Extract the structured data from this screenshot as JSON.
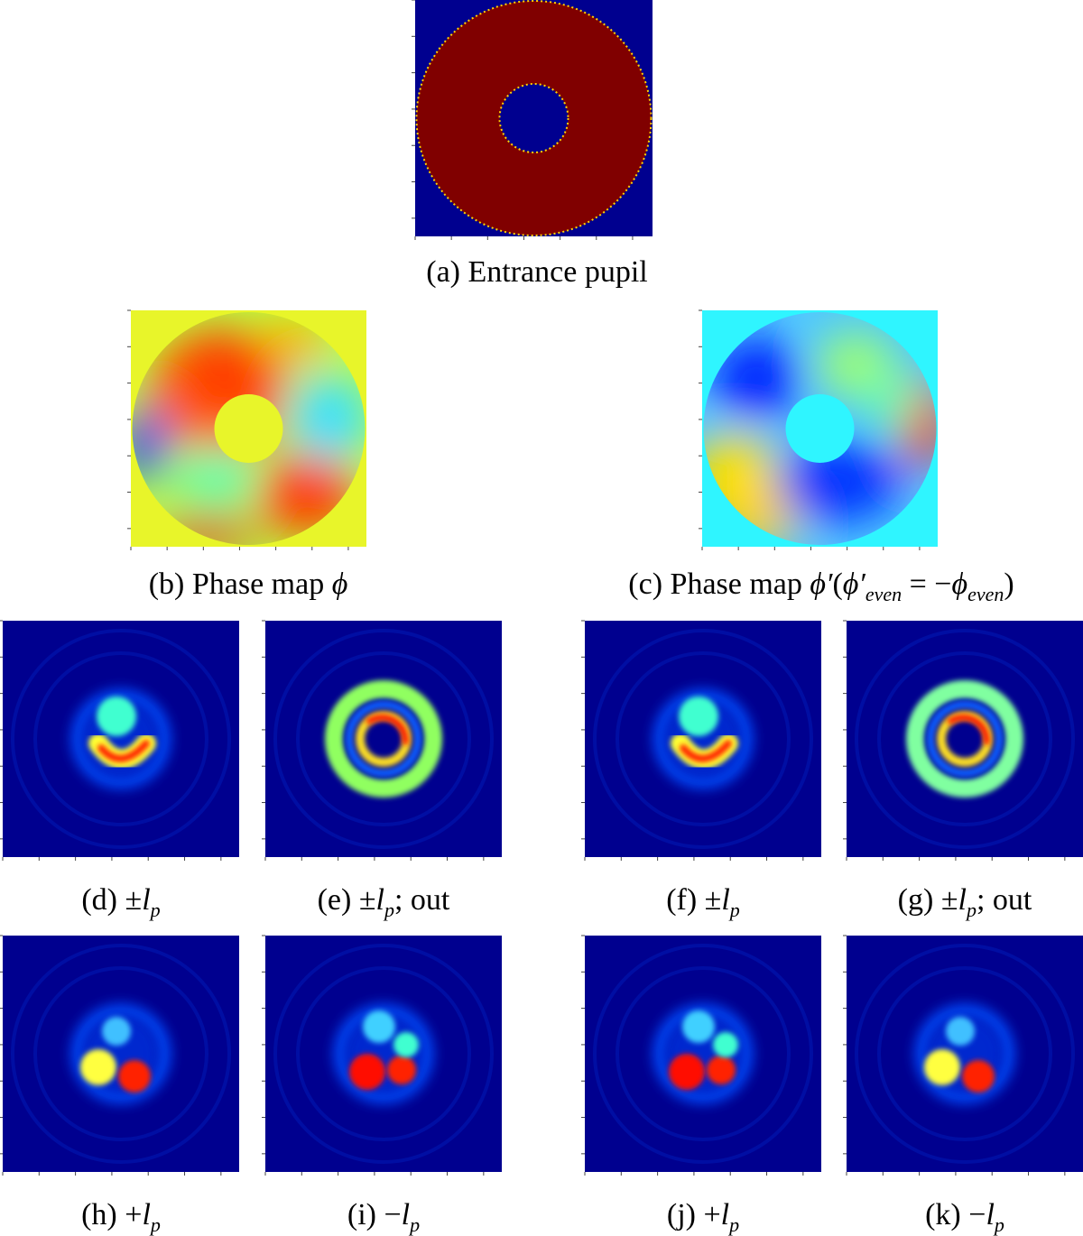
{
  "figure": {
    "colors": {
      "jet_dark_blue": "#00008f",
      "jet_dark_red": "#800000",
      "jet_cyan": "#2ff5ff",
      "jet_yellow": "#e8f52a"
    },
    "panels": [
      {
        "id": "a",
        "label": "(a)",
        "text": "Entrance pupil",
        "kind": "pupil"
      },
      {
        "id": "b",
        "label": "(b)",
        "text": "Phase map ",
        "symbol": "ϕ",
        "kind": "phase"
      },
      {
        "id": "c",
        "label": "(c)",
        "text": "Phase map ",
        "symbol": "ϕ′",
        "kind": "phase",
        "paren_open": "(",
        "lhs": "ϕ′",
        "lhs_sub": "even",
        "eq": " = −",
        "rhs": "ϕ",
        "rhs_sub": "even",
        "paren_close": ")"
      },
      {
        "id": "d",
        "label": "(d)",
        "prefix": "±",
        "symbol": "l",
        "sub": "p",
        "suffix": "",
        "kind": "psf"
      },
      {
        "id": "e",
        "label": "(e)",
        "prefix": "±",
        "symbol": "l",
        "sub": "p",
        "suffix": "; out",
        "kind": "psf"
      },
      {
        "id": "f",
        "label": "(f)",
        "prefix": "±",
        "symbol": "l",
        "sub": "p",
        "suffix": "",
        "kind": "psf"
      },
      {
        "id": "g",
        "label": "(g)",
        "prefix": "±",
        "symbol": "l",
        "sub": "p",
        "suffix": "; out",
        "kind": "psf"
      },
      {
        "id": "h",
        "label": "(h)",
        "prefix": "+",
        "symbol": "l",
        "sub": "p",
        "suffix": "",
        "kind": "psf"
      },
      {
        "id": "i",
        "label": "(i)",
        "prefix": "−",
        "symbol": "l",
        "sub": "p",
        "suffix": "",
        "kind": "psf"
      },
      {
        "id": "j",
        "label": "(j)",
        "prefix": "+",
        "symbol": "l",
        "sub": "p",
        "suffix": "",
        "kind": "psf"
      },
      {
        "id": "k",
        "label": "(k)",
        "prefix": "−",
        "symbol": "l",
        "sub": "p",
        "suffix": "",
        "kind": "psf"
      }
    ]
  }
}
